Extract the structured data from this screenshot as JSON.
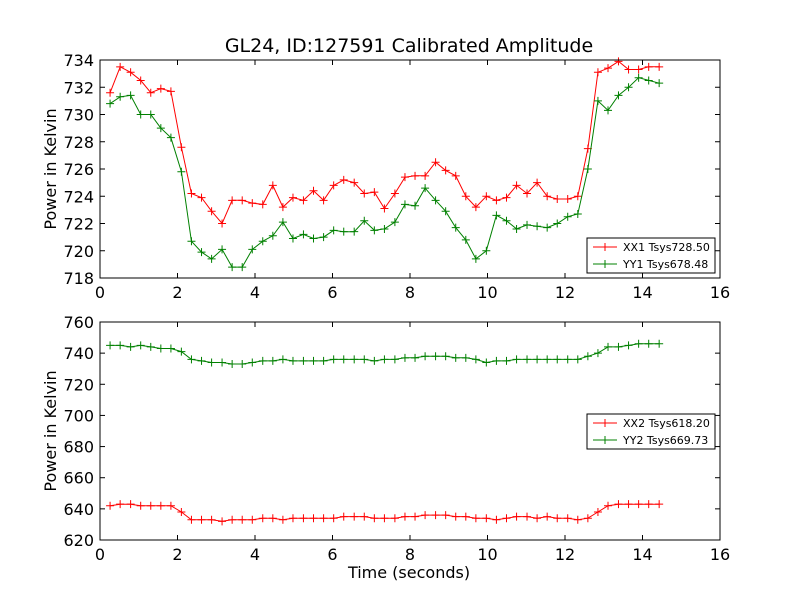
{
  "figure": {
    "title": "GL24, ID:127591 Calibrated Amplitude",
    "xlabel": "Time (seconds)"
  },
  "chart_data": [
    {
      "type": "line",
      "title": "GL24, ID:127591 Calibrated Amplitude",
      "xlabel": "",
      "ylabel": "Power in Kelvin",
      "xlim": [
        0,
        16
      ],
      "ylim": [
        718,
        734
      ],
      "xticks": [
        0,
        2,
        4,
        6,
        8,
        10,
        12,
        14,
        16
      ],
      "yticks": [
        718,
        720,
        722,
        724,
        726,
        728,
        730,
        732,
        734
      ],
      "grid": false,
      "legend_position": "lower-right",
      "x": [
        0.26,
        0.52,
        0.79,
        1.05,
        1.31,
        1.57,
        1.83,
        2.1,
        2.36,
        2.62,
        2.88,
        3.15,
        3.41,
        3.67,
        3.93,
        4.2,
        4.46,
        4.72,
        4.98,
        5.25,
        5.51,
        5.77,
        6.03,
        6.29,
        6.56,
        6.82,
        7.08,
        7.34,
        7.61,
        7.87,
        8.13,
        8.39,
        8.66,
        8.92,
        9.18,
        9.44,
        9.7,
        9.97,
        10.23,
        10.49,
        10.75,
        11.02,
        11.28,
        11.54,
        11.8,
        12.07,
        12.33,
        12.59,
        12.85,
        13.11,
        13.38,
        13.64,
        13.9,
        14.16,
        14.43
      ],
      "series": [
        {
          "name": "XX1 Tsys728.50",
          "color": "#ff0000",
          "values": [
            731.6,
            733.5,
            733.1,
            732.5,
            731.6,
            731.9,
            731.7,
            727.6,
            724.2,
            723.9,
            722.9,
            722.0,
            723.7,
            723.7,
            723.5,
            723.4,
            724.8,
            723.2,
            723.9,
            723.7,
            724.4,
            723.7,
            724.8,
            725.2,
            725.0,
            724.2,
            724.3,
            723.1,
            724.2,
            725.4,
            725.5,
            725.5,
            726.5,
            725.9,
            725.5,
            724.0,
            723.2,
            724.0,
            723.7,
            723.9,
            724.8,
            724.2,
            725.0,
            724.0,
            723.8,
            723.8,
            724.0,
            727.5,
            733.1,
            733.4,
            733.9,
            733.3,
            733.3,
            733.5,
            733.5
          ]
        },
        {
          "name": "YY1 Tsys678.48",
          "color": "#008000",
          "values": [
            730.8,
            731.3,
            731.4,
            730.0,
            730.0,
            729.0,
            728.3,
            725.8,
            720.7,
            719.9,
            719.4,
            720.1,
            718.8,
            718.8,
            720.1,
            720.7,
            721.1,
            722.1,
            720.9,
            721.2,
            720.9,
            721.0,
            721.5,
            721.4,
            721.4,
            722.2,
            721.5,
            721.6,
            722.1,
            723.4,
            723.3,
            724.6,
            723.7,
            722.9,
            721.7,
            720.8,
            719.4,
            720.0,
            722.6,
            722.2,
            721.6,
            721.9,
            721.8,
            721.7,
            722.0,
            722.5,
            722.7,
            726.0,
            731.0,
            730.3,
            731.4,
            732.0,
            732.7,
            732.5,
            732.3
          ]
        }
      ]
    },
    {
      "type": "line",
      "title": "",
      "xlabel": "Time (seconds)",
      "ylabel": "Power in Kelvin",
      "xlim": [
        0,
        16
      ],
      "ylim": [
        620,
        760
      ],
      "xticks": [
        0,
        2,
        4,
        6,
        8,
        10,
        12,
        14,
        16
      ],
      "yticks": [
        620,
        640,
        660,
        680,
        700,
        720,
        740,
        760
      ],
      "grid": false,
      "legend_position": "center-right",
      "x": [
        0.26,
        0.52,
        0.79,
        1.05,
        1.31,
        1.57,
        1.83,
        2.1,
        2.36,
        2.62,
        2.88,
        3.15,
        3.41,
        3.67,
        3.93,
        4.2,
        4.46,
        4.72,
        4.98,
        5.25,
        5.51,
        5.77,
        6.03,
        6.29,
        6.56,
        6.82,
        7.08,
        7.34,
        7.61,
        7.87,
        8.13,
        8.39,
        8.66,
        8.92,
        9.18,
        9.44,
        9.7,
        9.97,
        10.23,
        10.49,
        10.75,
        11.02,
        11.28,
        11.54,
        11.8,
        12.07,
        12.33,
        12.59,
        12.85,
        13.11,
        13.38,
        13.64,
        13.9,
        14.16,
        14.43
      ],
      "series": [
        {
          "name": "XX2 Tsys618.20",
          "color": "#ff0000",
          "values": [
            642,
            643,
            643,
            642,
            642,
            642,
            642,
            638,
            633,
            633,
            633,
            632,
            633,
            633,
            633,
            634,
            634,
            633,
            634,
            634,
            634,
            634,
            634,
            635,
            635,
            635,
            634,
            634,
            634,
            635,
            635,
            636,
            636,
            636,
            635,
            635,
            634,
            634,
            633,
            634,
            635,
            635,
            634,
            635,
            634,
            634,
            633,
            634,
            638,
            642,
            643,
            643,
            643,
            643,
            643
          ]
        },
        {
          "name": "YY2 Tsys669.73",
          "color": "#008000",
          "values": [
            745,
            745,
            744,
            745,
            744,
            743,
            743,
            741,
            736,
            735,
            734,
            734,
            733,
            733,
            734,
            735,
            735,
            736,
            735,
            735,
            735,
            735,
            736,
            736,
            736,
            736,
            735,
            736,
            736,
            737,
            737,
            738,
            738,
            738,
            737,
            737,
            736,
            734,
            735,
            735,
            736,
            736,
            736,
            736,
            736,
            736,
            736,
            738,
            740,
            744,
            744,
            745,
            746,
            746,
            746
          ]
        }
      ]
    }
  ]
}
